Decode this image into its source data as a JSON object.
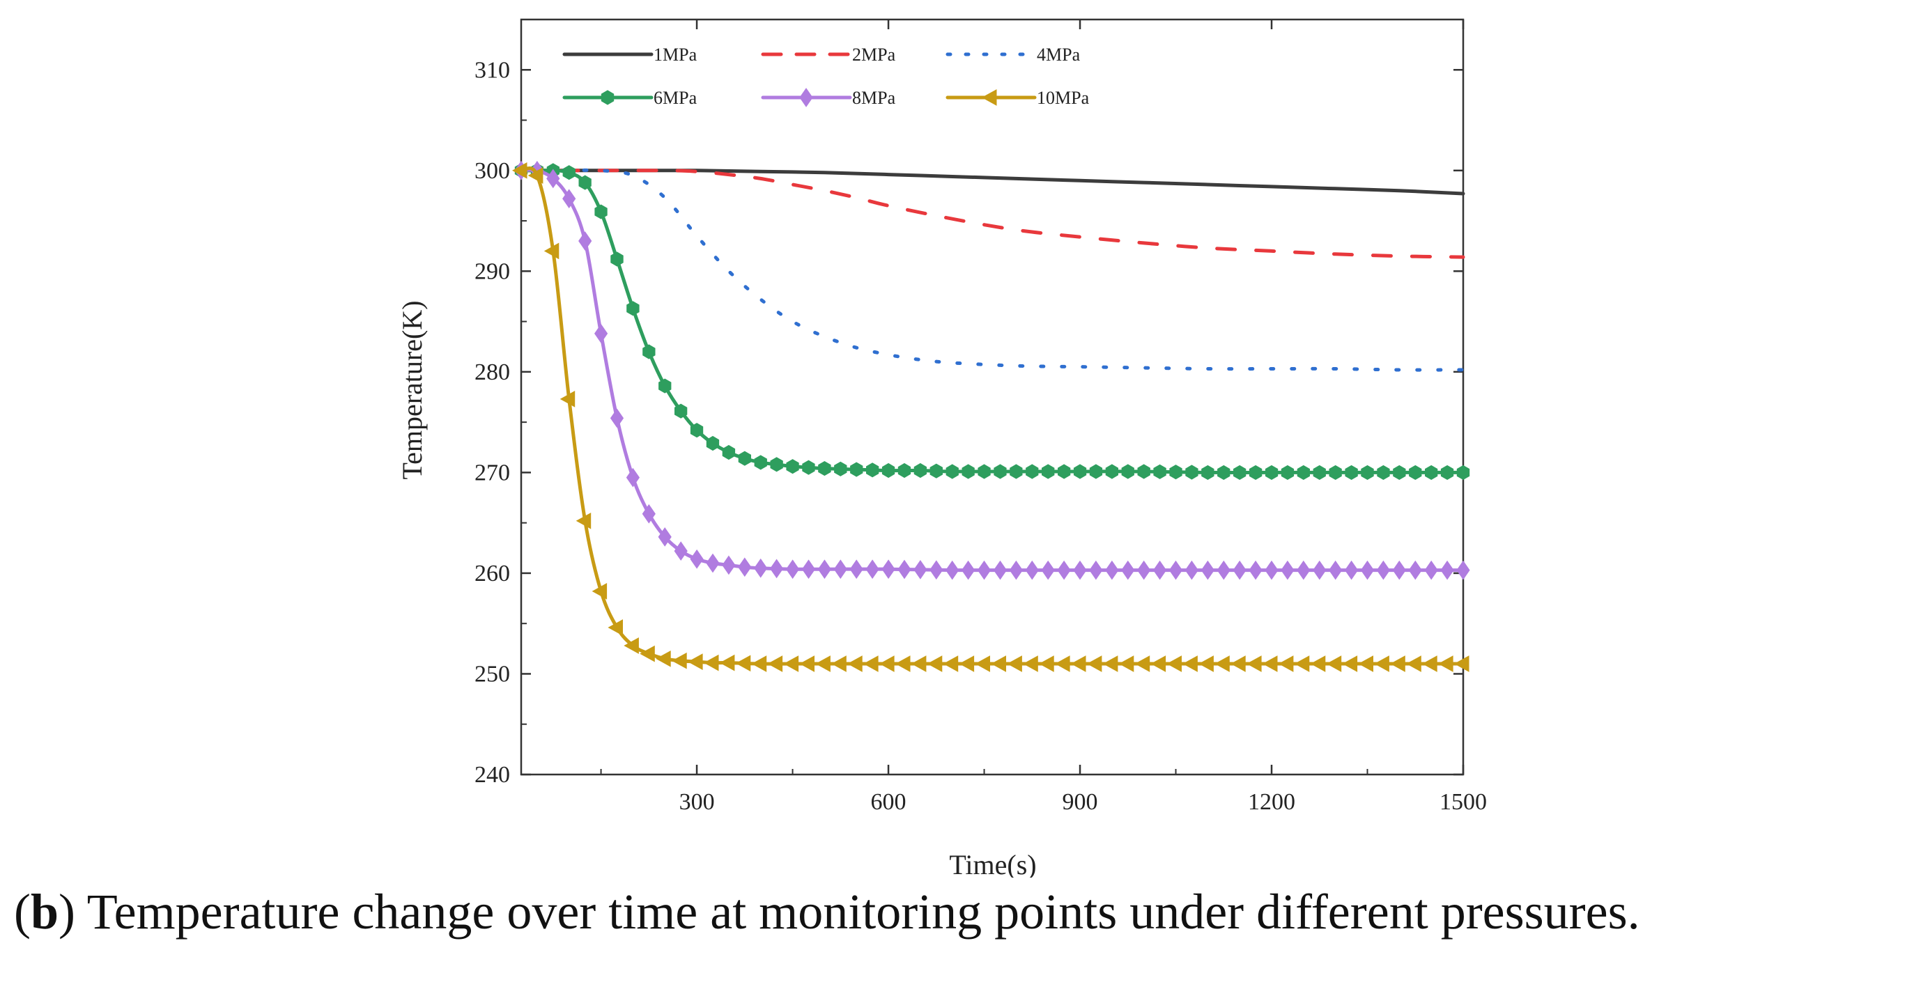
{
  "chart_data": {
    "type": "line",
    "title": "",
    "xlabel": "Time(s)",
    "ylabel": "Temperature(K)",
    "xlim": [
      25,
      1500
    ],
    "ylim": [
      240,
      315
    ],
    "xticks": [
      300,
      600,
      900,
      1200,
      1500
    ],
    "yticks": [
      240,
      250,
      260,
      270,
      280,
      290,
      300,
      310
    ],
    "legend_position": "top-left",
    "series": [
      {
        "name": "1MPa",
        "color": "#3c3c3c",
        "style": "solid",
        "marker": "none",
        "x": [
          25,
          100,
          200,
          300,
          400,
          500,
          600,
          700,
          800,
          900,
          1000,
          1100,
          1200,
          1300,
          1400,
          1500
        ],
        "y": [
          300,
          300,
          300,
          300,
          299.9,
          299.8,
          299.6,
          299.4,
          299.2,
          299.0,
          298.8,
          298.6,
          298.4,
          298.2,
          298.0,
          297.7
        ]
      },
      {
        "name": "2MPa",
        "color": "#e8383c",
        "style": "dashed",
        "marker": "none",
        "x": [
          25,
          150,
          250,
          300,
          350,
          400,
          450,
          500,
          550,
          600,
          700,
          800,
          900,
          1000,
          1100,
          1200,
          1300,
          1400,
          1500
        ],
        "y": [
          300,
          300,
          300,
          299.9,
          299.6,
          299.2,
          298.6,
          298.0,
          297.3,
          296.5,
          295.2,
          294.1,
          293.4,
          292.8,
          292.3,
          292.0,
          291.7,
          291.5,
          291.4
        ]
      },
      {
        "name": "4MPa",
        "color": "#2f6fd0",
        "style": "dotted",
        "marker": "none",
        "x": [
          25,
          100,
          150,
          200,
          250,
          300,
          350,
          400,
          450,
          500,
          550,
          600,
          650,
          700,
          800,
          900,
          1000,
          1100,
          1200,
          1300,
          1400,
          1500
        ],
        "y": [
          300,
          300,
          300,
          299.5,
          297.3,
          293.5,
          290.0,
          287.2,
          285.0,
          283.5,
          282.4,
          281.7,
          281.2,
          280.9,
          280.6,
          280.5,
          280.4,
          280.3,
          280.3,
          280.3,
          280.2,
          280.2
        ]
      },
      {
        "name": "6MPa",
        "color": "#2e9e5e",
        "style": "solid",
        "marker": "hexagon",
        "x": [
          25,
          50,
          75,
          100,
          125,
          150,
          175,
          200,
          225,
          250,
          275,
          300,
          325,
          350,
          375,
          400,
          425,
          450,
          475,
          500,
          550,
          600,
          650,
          700,
          800,
          900,
          1000,
          1100,
          1200,
          1300,
          1400,
          1500
        ],
        "y": [
          300,
          300,
          300,
          299.8,
          298.8,
          295.9,
          291.2,
          286.3,
          282.0,
          278.6,
          276.1,
          274.2,
          272.9,
          272.0,
          271.4,
          271.0,
          270.8,
          270.6,
          270.5,
          270.4,
          270.3,
          270.2,
          270.2,
          270.1,
          270.1,
          270.1,
          270.1,
          270.0,
          270.0,
          270.0,
          270.0,
          270.0
        ]
      },
      {
        "name": "8MPa",
        "color": "#b07ce0",
        "style": "solid",
        "marker": "diamond",
        "x": [
          25,
          50,
          75,
          100,
          125,
          150,
          175,
          200,
          225,
          250,
          275,
          300,
          325,
          350,
          375,
          400,
          450,
          500,
          600,
          700,
          800,
          900,
          1000,
          1100,
          1200,
          1300,
          1400,
          1500
        ],
        "y": [
          300,
          300,
          299.2,
          297.2,
          293.0,
          283.8,
          275.4,
          269.5,
          265.9,
          263.6,
          262.2,
          261.4,
          261.0,
          260.8,
          260.6,
          260.5,
          260.4,
          260.4,
          260.4,
          260.3,
          260.3,
          260.3,
          260.3,
          260.3,
          260.3,
          260.3,
          260.3,
          260.3
        ]
      },
      {
        "name": "10MPa",
        "color": "#c89b14",
        "style": "solid",
        "marker": "triangle-left",
        "x": [
          25,
          50,
          75,
          100,
          125,
          150,
          175,
          200,
          225,
          250,
          275,
          300,
          325,
          350,
          400,
          450,
          500,
          600,
          700,
          800,
          900,
          1000,
          1100,
          1200,
          1300,
          1400,
          1500
        ],
        "y": [
          300,
          299.5,
          292.0,
          277.3,
          265.2,
          258.2,
          254.6,
          252.8,
          252.0,
          251.5,
          251.3,
          251.2,
          251.1,
          251.1,
          251.0,
          251.0,
          251.0,
          251.0,
          251.0,
          251.0,
          251.0,
          251.0,
          251.0,
          251.0,
          251.0,
          251.0,
          251.0
        ]
      }
    ]
  },
  "caption": {
    "label": "b",
    "open": "(",
    "close": ")",
    "text": " Temperature change over time at monitoring points under different pressures."
  }
}
